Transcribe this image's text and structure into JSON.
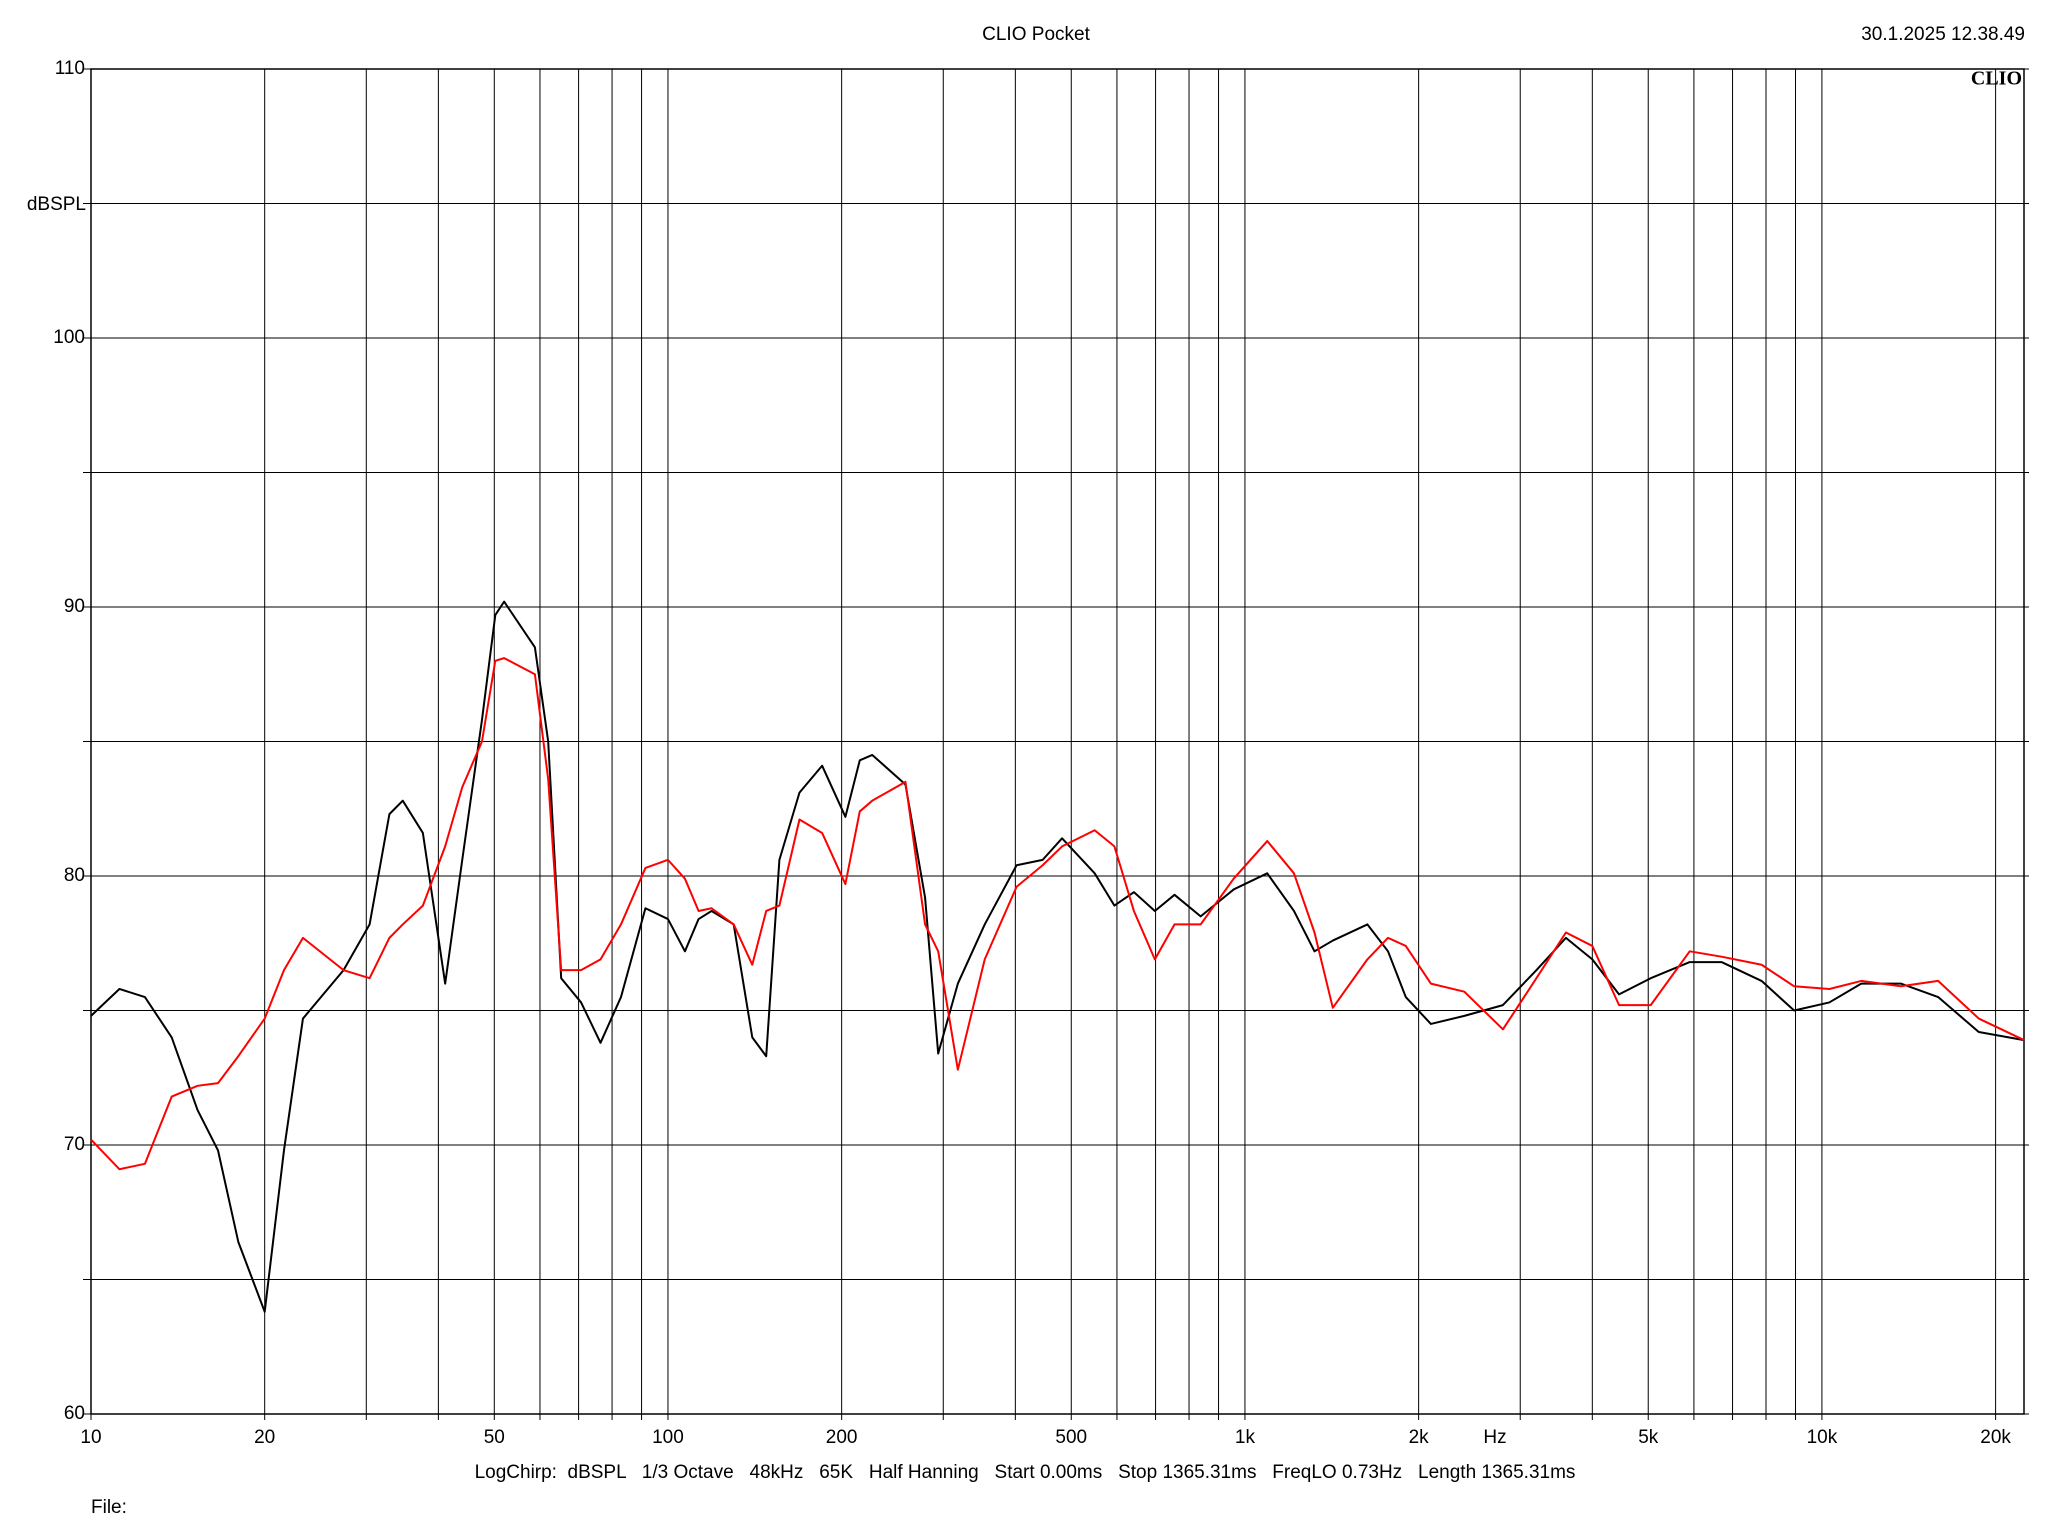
{
  "chart_data": {
    "type": "line",
    "title": "CLIO Pocket",
    "timestamp": "30.1.2025 12.38.49",
    "logo": "CLIO",
    "y_label": "dBSPL",
    "x_label": "Hz",
    "footer": "LogChirp:  dBSPL   1/3 Octave   48kHz   65K   Half Hanning   Start 0.00ms   Stop 1365.31ms   FreqLO 0.73Hz   Length 1365.31ms",
    "file_label": "File:",
    "x_log": true,
    "grid": true,
    "xlim": [
      10,
      22400
    ],
    "ylim": [
      60,
      110
    ],
    "xticks": [
      10,
      20,
      50,
      100,
      200,
      500,
      {
        "value": 1000,
        "label": "1k"
      },
      {
        "value": 2000,
        "label": "2k"
      },
      {
        "value": 5000,
        "label": "5k"
      },
      {
        "value": 10000,
        "label": "10k"
      },
      {
        "value": 20000,
        "label": "20k"
      }
    ],
    "minor_xticks": [
      30,
      40,
      60,
      70,
      80,
      90,
      300,
      400,
      600,
      700,
      800,
      900,
      3000,
      4000,
      6000,
      7000,
      8000,
      9000
    ],
    "yticks": [
      60,
      70,
      80,
      90,
      100,
      110
    ],
    "minor_yticks": [
      65,
      75,
      85,
      95,
      105
    ],
    "x": [
      10,
      11.2,
      12.4,
      13.8,
      15.3,
      16.6,
      18,
      20,
      21.6,
      23.3,
      27.4,
      30.4,
      32.9,
      34.7,
      37.6,
      41.1,
      44,
      47.6,
      50.2,
      52,
      58.8,
      62,
      65.3,
      70.7,
      76.4,
      82.9,
      91.4,
      100,
      107,
      113,
      119,
      130,
      140,
      148,
      156,
      169,
      185,
      203,
      215,
      226,
      258,
      279,
      294,
      318,
      354,
      402,
      446,
      482,
      549,
      594,
      642,
      698,
      755,
      838,
      956,
      1093,
      1216,
      1320,
      1420,
      1630,
      1770,
      1900,
      2100,
      2400,
      2800,
      3200,
      3600,
      4000,
      4450,
      5050,
      5900,
      6700,
      7860,
      8950,
      10300,
      11700,
      13700,
      15900,
      18700,
      22400
    ],
    "series": [
      {
        "color": "#000000",
        "values": [
          74.8,
          75.8,
          75.5,
          74.0,
          71.3,
          69.8,
          66.4,
          63.8,
          69.8,
          74.7,
          76.5,
          78.2,
          82.3,
          82.8,
          81.6,
          76.0,
          80.6,
          85.8,
          89.7,
          90.2,
          88.5,
          85.0,
          76.2,
          75.3,
          73.8,
          75.5,
          78.8,
          78.4,
          77.2,
          78.4,
          78.7,
          78.2,
          74.0,
          73.3,
          80.6,
          83.1,
          84.1,
          82.2,
          84.3,
          84.5,
          83.4,
          79.2,
          73.4,
          76.0,
          78.2,
          80.4,
          80.6,
          81.4,
          80.1,
          78.9,
          79.4,
          78.7,
          79.3,
          78.5,
          79.5,
          80.1,
          78.7,
          77.2,
          77.6,
          78.2,
          77.2,
          75.5,
          74.5,
          74.8,
          75.2,
          76.5,
          77.7,
          76.9,
          75.6,
          76.2,
          76.8,
          76.8,
          76.1,
          75.0,
          75.3,
          76.0,
          76.0,
          75.5,
          74.2,
          73.9
        ]
      },
      {
        "color": "#ff0000",
        "values": [
          70.2,
          69.1,
          69.3,
          71.8,
          72.2,
          72.3,
          73.3,
          74.7,
          76.5,
          77.7,
          76.5,
          76.2,
          77.7,
          78.2,
          78.9,
          81.1,
          83.3,
          85.0,
          88.0,
          88.1,
          87.5,
          83.6,
          76.5,
          76.5,
          76.9,
          78.2,
          80.3,
          80.6,
          79.9,
          78.7,
          78.8,
          78.2,
          76.7,
          78.7,
          78.9,
          82.1,
          81.6,
          79.7,
          82.4,
          82.8,
          83.5,
          78.2,
          77.2,
          72.8,
          76.9,
          79.6,
          80.4,
          81.1,
          81.7,
          81.1,
          78.7,
          76.9,
          78.2,
          78.2,
          79.9,
          81.3,
          80.1,
          77.9,
          75.1,
          76.9,
          77.7,
          77.4,
          76.0,
          75.7,
          74.3,
          76.2,
          77.9,
          77.4,
          75.2,
          75.2,
          77.2,
          77.0,
          76.7,
          75.9,
          75.8,
          76.1,
          75.9,
          76.1,
          74.7,
          73.9
        ]
      }
    ]
  }
}
